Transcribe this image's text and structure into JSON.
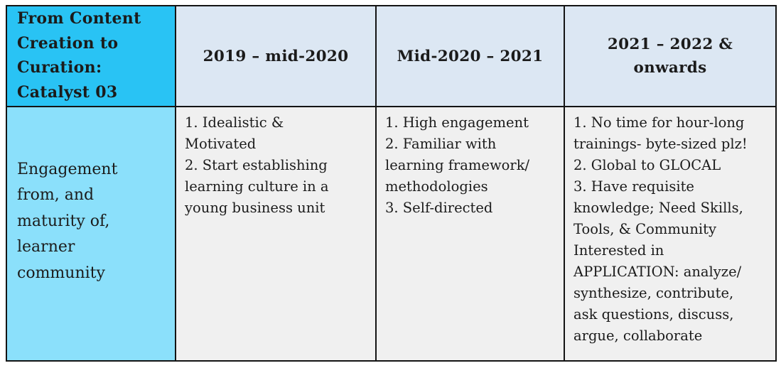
{
  "theme": {
    "corner_bg": "#29C3F4",
    "head_bg": "#DCE7F3",
    "label_bg": "#8BE0FB",
    "cell_bg": "#F0F0F0",
    "border": "#141414",
    "text": "#1B1B1B",
    "page_bg": "#FFFFFF"
  },
  "table": {
    "title": "From Content Creation to Curation: Catalyst 03",
    "header": {
      "corner": "From Content\nCreation to\nCuration:\nCatalyst 03",
      "columns": [
        "2019 – mid-2020",
        "Mid-2020 – 2021",
        "2021 – 2022 &\nonwards"
      ]
    },
    "rows": [
      {
        "label": "Engagement\nfrom, and\nmaturity of,\nlearner\ncommunity",
        "cells": [
          "1. Idealistic &\nMotivated\n2. Start establishing\nlearning culture in a\nyoung business unit",
          "1. High engagement\n2. Familiar with\nlearning framework/\nmethodologies\n3. Self-directed",
          "1. No time for hour-long\ntrainings- byte-sized plz!\n2. Global to GLOCAL\n3. Have requisite\nknowledge; Need Skills,\nTools, & Community\nInterested in\nAPPLICATION: analyze/\nsynthesize, contribute,\nask questions, discuss,\nargue, collaborate"
        ]
      }
    ]
  }
}
